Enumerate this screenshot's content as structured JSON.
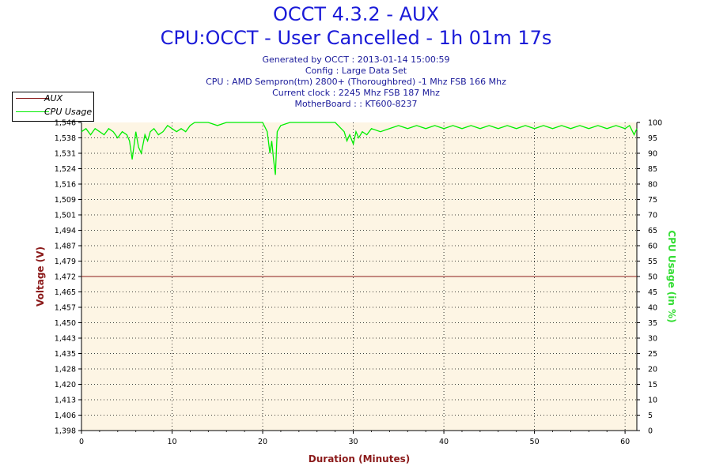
{
  "header": {
    "title": "OCCT 4.3.2 - AUX",
    "subtitle": "CPU:OCCT - User Cancelled - 1h 01m 17s",
    "info_lines": [
      "Generated by OCCT : 2013-01-14 15:00:59",
      "Config : Large Data Set",
      "CPU : AMD Sempron(tm) 2800+ (Thoroughbred) -1 Mhz FSB 166 Mhz",
      "Current clock : 2245 Mhz FSB 187 Mhz",
      "MotherBoard : : KT600-8237"
    ]
  },
  "legend": [
    {
      "label": "AUX",
      "color": "#8b1a1a"
    },
    {
      "label": "CPU Usage",
      "color": "#00ee00"
    }
  ],
  "chart_data": {
    "type": "line",
    "xlabel": "Duration (Minutes)",
    "ylabel": "Voltage (V)",
    "y2label": "CPU Usage (in %)",
    "xlim": [
      0,
      61.3
    ],
    "ylim": [
      1.398,
      1.546
    ],
    "y2lim": [
      0,
      100
    ],
    "x_ticks": [
      "0",
      "10",
      "20",
      "30",
      "40",
      "50",
      "60"
    ],
    "y_ticks": [
      "1,398",
      "1,406",
      "1,413",
      "1,420",
      "1,428",
      "1,435",
      "1,443",
      "1,450",
      "1,457",
      "1,465",
      "1,472",
      "1,479",
      "1,487",
      "1,494",
      "1,501",
      "1,509",
      "1,516",
      "1,524",
      "1,531",
      "1,538",
      "1,546"
    ],
    "y2_ticks": [
      "0",
      "5",
      "10",
      "15",
      "20",
      "25",
      "30",
      "35",
      "40",
      "45",
      "50",
      "55",
      "60",
      "65",
      "70",
      "75",
      "80",
      "85",
      "90",
      "95",
      "100"
    ],
    "grid": true,
    "colors": {
      "plot_bg": "#fdf5e4",
      "aux": "#8b1a1a",
      "cpu": "#00ee00",
      "voltage_axis": "#8b1a1a",
      "cpu_axis": "#33dd33",
      "xlabel": "#8b1a1a"
    },
    "series": [
      {
        "name": "AUX",
        "axis": "left",
        "x": [
          0,
          61.3
        ],
        "values": [
          1.472,
          1.472
        ]
      },
      {
        "name": "CPU Usage",
        "axis": "right",
        "x": [
          0,
          0.5,
          1,
          1.5,
          2,
          2.5,
          3,
          3.5,
          4,
          4.5,
          5,
          5.3,
          5.6,
          6,
          6.3,
          6.6,
          7,
          7.3,
          7.6,
          8,
          8.5,
          9,
          9.5,
          10,
          10.5,
          11,
          11.5,
          12,
          12.5,
          13,
          14,
          15,
          16,
          17,
          18,
          19,
          20,
          20.5,
          20.8,
          21,
          21.2,
          21.4,
          21.6,
          22,
          23,
          24,
          25,
          26,
          27,
          28,
          29,
          29.3,
          29.6,
          30,
          30.3,
          30.6,
          31,
          31.5,
          32,
          33,
          34,
          35,
          36,
          37,
          38,
          39,
          40,
          41,
          42,
          43,
          44,
          45,
          46,
          47,
          48,
          49,
          50,
          51,
          52,
          53,
          54,
          55,
          56,
          57,
          58,
          59,
          60,
          60.5,
          61,
          61.3
        ],
        "values": [
          97,
          98,
          96,
          98,
          97,
          96,
          98,
          97,
          95,
          97,
          96,
          94,
          88,
          97,
          92,
          90,
          96,
          94,
          97,
          98,
          96,
          97,
          99,
          98,
          97,
          98,
          97,
          99,
          100,
          100,
          100,
          99,
          100,
          100,
          100,
          100,
          100,
          97,
          90,
          94,
          88,
          83,
          97,
          99,
          100,
          100,
          100,
          100,
          100,
          100,
          97,
          94,
          96,
          93,
          97,
          95,
          97,
          96,
          98,
          97,
          98,
          99,
          98,
          99,
          98,
          99,
          98,
          99,
          98,
          99,
          98,
          99,
          98,
          99,
          98,
          99,
          98,
          99,
          98,
          99,
          98,
          99,
          98,
          99,
          98,
          99,
          98,
          99,
          96,
          98
        ]
      }
    ]
  }
}
